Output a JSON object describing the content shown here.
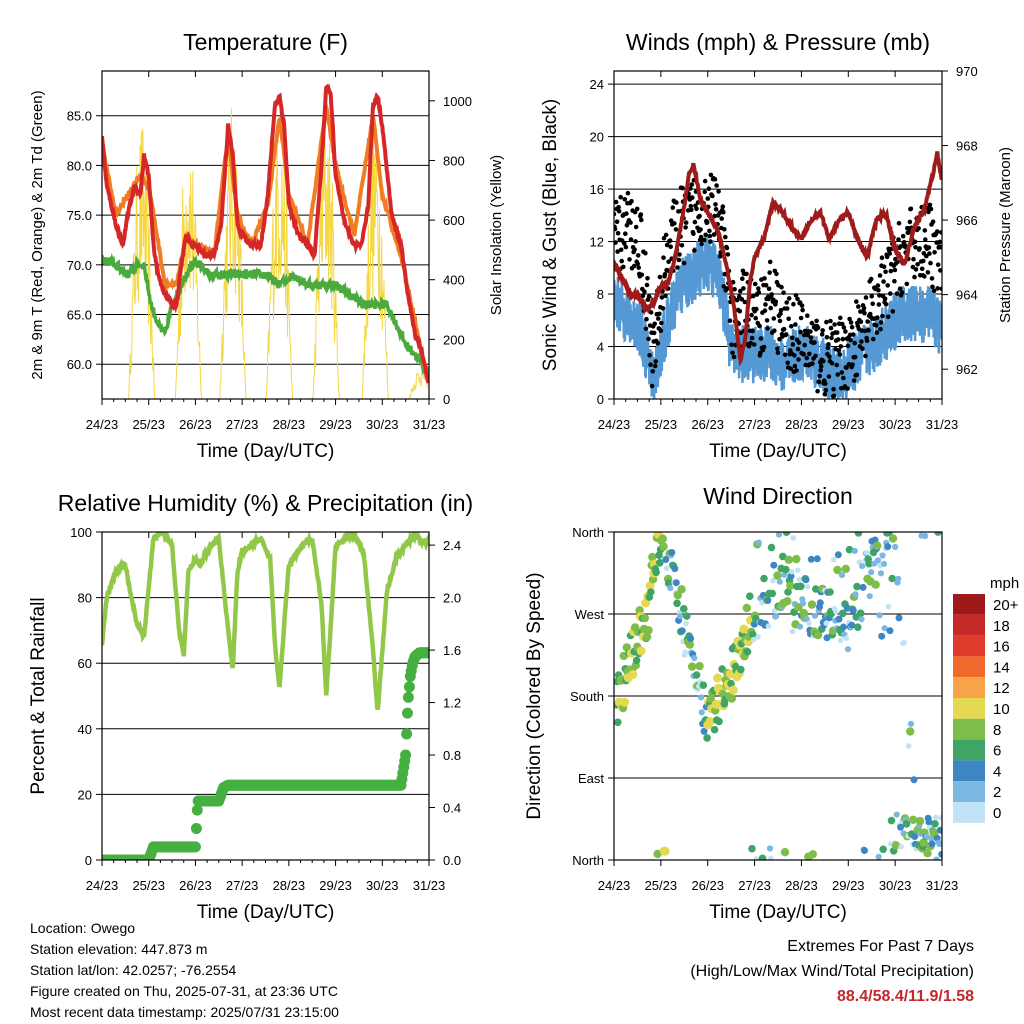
{
  "x_ticks": [
    "24/23",
    "25/23",
    "26/23",
    "27/23",
    "28/23",
    "29/23",
    "30/23",
    "31/23"
  ],
  "chart_data": [
    {
      "type": "line",
      "title": "Temperature (F)",
      "xlabel": "Time (Day/UTC)",
      "ylabel": "2m & 9m T (Red, Orange) & 2m Td (Green)",
      "y2label": "Solar Insolation (Yellow)",
      "x_range": [
        "24/23",
        "31/23"
      ],
      "ylim": [
        56.5,
        89.5
      ],
      "y_ticks": [
        "60.0",
        "65.0",
        "70.0",
        "75.0",
        "80.0",
        "85.0"
      ],
      "y2lim": [
        0,
        1100
      ],
      "y2_ticks": [
        "0",
        "200",
        "400",
        "600",
        "800",
        "1000"
      ],
      "grid": true,
      "colors": {
        "temp_2m": "#d62728",
        "temp_9m": "#f07c24",
        "dewpoint_2m": "#4aaa3e",
        "solar": "#f5d742"
      },
      "series": [
        {
          "key": "temp_2m",
          "x": [
            0,
            0.1,
            0.3,
            0.45,
            0.55,
            0.7,
            0.82,
            0.9,
            1.0,
            1.1,
            1.2,
            1.35,
            1.5,
            1.6,
            1.7,
            1.8,
            1.9,
            2.0,
            2.2,
            2.4,
            2.55,
            2.7,
            2.8,
            2.9,
            3.0,
            3.2,
            3.4,
            3.55,
            3.7,
            3.8,
            3.9,
            4.0,
            4.2,
            4.4,
            4.55,
            4.7,
            4.8,
            4.9,
            5.0,
            5.2,
            5.4,
            5.55,
            5.7,
            5.8,
            5.9,
            6.0,
            6.2,
            6.4,
            6.55,
            6.7,
            6.8,
            6.9,
            7.0
          ],
          "values": [
            83,
            78,
            74,
            72,
            75,
            78,
            77,
            81,
            79,
            72,
            69,
            67,
            66,
            66,
            70,
            73,
            72,
            72,
            71,
            71,
            74,
            84,
            81,
            74,
            73,
            72,
            72,
            77,
            86,
            87,
            84,
            76,
            73,
            72,
            71,
            80,
            88,
            87,
            79,
            74,
            72,
            72,
            76,
            86,
            87,
            84,
            75,
            72,
            67,
            63,
            62,
            60,
            58
          ]
        },
        {
          "key": "temp_9m",
          "x": [
            0,
            0.3,
            0.55,
            0.82,
            1.0,
            1.35,
            1.6,
            1.8,
            2.0,
            2.4,
            2.7,
            2.9,
            3.2,
            3.55,
            3.8,
            4.0,
            4.4,
            4.8,
            5.0,
            5.4,
            5.8,
            6.0,
            6.4,
            6.8,
            7.0
          ],
          "values": [
            82,
            75,
            77,
            79,
            78,
            68,
            68,
            73,
            72,
            71,
            83,
            75,
            72,
            76,
            85,
            77,
            72,
            86,
            80,
            73,
            85,
            77,
            71,
            62,
            58
          ]
        },
        {
          "key": "dewpoint_2m",
          "x": [
            0,
            0.3,
            0.55,
            0.75,
            0.9,
            1.05,
            1.2,
            1.35,
            1.5,
            1.7,
            1.9,
            2.1,
            2.3,
            2.6,
            2.9,
            3.2,
            3.5,
            3.8,
            4.1,
            4.4,
            4.7,
            5.0,
            5.3,
            5.6,
            5.9,
            6.1,
            6.3,
            6.5,
            6.7,
            6.85,
            7.0
          ],
          "values": [
            70.5,
            70,
            69,
            70,
            70,
            66,
            64,
            63,
            66,
            68,
            70,
            70,
            69,
            69,
            69,
            69,
            69,
            68,
            69,
            68,
            68,
            68,
            67,
            66,
            66,
            66,
            64,
            62,
            61,
            60,
            59
          ]
        },
        {
          "key": "solar",
          "peaks": [
            0.85,
            1.85,
            2.8,
            3.8,
            4.8,
            5.85,
            6.85
          ],
          "values": [
            950,
            950,
            1000,
            1000,
            1000,
            950,
            120
          ]
        }
      ]
    },
    {
      "type": "scatter",
      "title": "Winds (mph) & Pressure (mb)",
      "xlabel": "Time (Day/UTC)",
      "ylabel": "Sonic Wind & Gust (Blue, Black)",
      "y2label": "Station Pressure (Maroon)",
      "ylim": [
        0,
        25
      ],
      "y_ticks": [
        "0",
        "4",
        "8",
        "12",
        "16",
        "20",
        "24"
      ],
      "y2lim": [
        961.2,
        970
      ],
      "y2_ticks": [
        "962",
        "964",
        "966",
        "968",
        "970"
      ],
      "grid": true,
      "colors": {
        "wind": "#5599d4",
        "gust": "#000000",
        "pressure": "#9e1b1b"
      },
      "series": [
        {
          "key": "pressure",
          "x": [
            0,
            0.15,
            0.35,
            0.5,
            0.7,
            0.85,
            1.0,
            1.15,
            1.3,
            1.45,
            1.6,
            1.7,
            1.85,
            2.0,
            2.2,
            2.4,
            2.55,
            2.7,
            2.8,
            2.9,
            3.0,
            3.2,
            3.4,
            3.6,
            3.8,
            4.0,
            4.2,
            4.4,
            4.6,
            4.8,
            5.0,
            5.2,
            5.4,
            5.6,
            5.8,
            6.0,
            6.2,
            6.4,
            6.6,
            6.8,
            6.9,
            7.0
          ],
          "values": [
            964.8,
            964.5,
            964.0,
            964.0,
            963.6,
            963.8,
            964.2,
            964.3,
            965.0,
            966.0,
            967.2,
            967.5,
            966.5,
            966.2,
            965.8,
            964.8,
            963.8,
            962.2,
            962.8,
            964.3,
            965.0,
            965.5,
            966.5,
            966.2,
            965.8,
            965.5,
            966.0,
            966.2,
            965.5,
            966.0,
            966.2,
            965.5,
            965.0,
            966.0,
            966.2,
            965.2,
            964.8,
            965.8,
            966.2,
            967.2,
            967.8,
            967.0
          ]
        },
        {
          "key": "wind",
          "mean": [
            7,
            6,
            5,
            1,
            5,
            8,
            9,
            10,
            9,
            3,
            3,
            3,
            3,
            2,
            3,
            3,
            2,
            1,
            2,
            3,
            4,
            5,
            6,
            6,
            6,
            5
          ],
          "gust": [
            12,
            13,
            12,
            3,
            11,
            13,
            14,
            15,
            14,
            6,
            7,
            6,
            8,
            5,
            5,
            4,
            3,
            3,
            4,
            5,
            7,
            9,
            11,
            12,
            12,
            10
          ]
        }
      ]
    },
    {
      "type": "line",
      "title": "Relative Humidity (%) & Precipitation (in)",
      "xlabel": "Time (Day/UTC)",
      "ylabel": "Percent & Total Rainfall",
      "ylim": [
        0,
        100
      ],
      "y_ticks": [
        "0",
        "20",
        "40",
        "60",
        "80",
        "100"
      ],
      "y2lim": [
        0,
        2.5
      ],
      "y2_ticks": [
        "0.0",
        "0.4",
        "0.8",
        "1.2",
        "1.6",
        "2.0",
        "2.4"
      ],
      "grid": true,
      "colors": {
        "rh": "#92c84a",
        "precip": "#45b041"
      },
      "series": [
        {
          "key": "rh",
          "x": [
            0,
            0.1,
            0.3,
            0.5,
            0.6,
            0.75,
            0.9,
            1.1,
            1.3,
            1.5,
            1.65,
            1.75,
            1.85,
            2.0,
            2.1,
            2.3,
            2.5,
            2.7,
            2.8,
            2.9,
            3.0,
            3.2,
            3.4,
            3.6,
            3.7,
            3.8,
            3.9,
            4.0,
            4.3,
            4.5,
            4.7,
            4.8,
            4.9,
            5.0,
            5.2,
            5.4,
            5.6,
            5.8,
            5.9,
            6.1,
            6.3,
            6.5,
            6.7,
            6.85,
            7.0
          ],
          "values": [
            66,
            80,
            88,
            90,
            82,
            72,
            68,
            98,
            100,
            96,
            70,
            62,
            88,
            92,
            90,
            95,
            98,
            70,
            58,
            88,
            94,
            96,
            98,
            92,
            66,
            52,
            72,
            90,
            96,
            98,
            78,
            50,
            72,
            96,
            98,
            99,
            94,
            64,
            45,
            82,
            92,
            96,
            99,
            97,
            97
          ]
        },
        {
          "key": "precip",
          "x": [
            0,
            0.5,
            1.0,
            1.1,
            1.2,
            2.0,
            2.05,
            2.1,
            2.5,
            2.6,
            2.7,
            6.0,
            6.4,
            6.5,
            6.55,
            6.6,
            6.65,
            6.7,
            6.8,
            7.0
          ],
          "values": [
            0,
            0,
            0,
            0.1,
            0.1,
            0.1,
            0.45,
            0.45,
            0.45,
            0.55,
            0.57,
            0.57,
            0.57,
            0.8,
            1.2,
            1.4,
            1.5,
            1.55,
            1.58,
            1.58
          ]
        }
      ]
    },
    {
      "type": "scatter",
      "title": "Wind Direction",
      "xlabel": "Time (Day/UTC)",
      "ylabel": "Direction (Colored By Speed)",
      "y_ticks": [
        "North",
        "East",
        "South",
        "West",
        "North"
      ],
      "ylim": [
        0,
        360
      ],
      "grid": true,
      "legend": {
        "placement": "right",
        "title": "mph",
        "labels": [
          "20+",
          "18",
          "16",
          "14",
          "12",
          "10",
          "8",
          "6",
          "4",
          "2",
          "0"
        ],
        "colors": [
          "#9e1a1a",
          "#c52a26",
          "#df3a2b",
          "#f06a2e",
          "#f7a449",
          "#e5d954",
          "#7fbd4a",
          "#3fa566",
          "#3d86c4",
          "#7cb7e2",
          "#c2e3f5"
        ]
      },
      "series": [
        {
          "key": "direction",
          "x": [
            0.1,
            0.3,
            0.5,
            0.7,
            0.9,
            1.0,
            2.0,
            2.3,
            2.6,
            2.9,
            3.5,
            4.0,
            4.5,
            5.0,
            5.5,
            6.0,
            6.5,
            7.0
          ],
          "values": [
            180,
            210,
            240,
            270,
            330,
            360,
            150,
            180,
            210,
            260,
            300,
            280,
            270,
            260,
            320,
            340,
            20,
            20
          ]
        }
      ]
    }
  ],
  "info": {
    "location": "Location: Owego",
    "elevation": "Station elevation: 447.873 m",
    "latlon": "Station lat/lon: 42.0257; -76.2554",
    "created": "Figure created on Thu, 2025-07-31, at 23:36 UTC",
    "timestamp": "Most recent data timestamp: 2025/07/31 23:15:00"
  },
  "extremes": {
    "title": "Extremes For Past 7 Days",
    "subtitle": "(High/Low/Max Wind/Total Precipitation)",
    "values": "88.4/58.4/11.9/1.58"
  }
}
